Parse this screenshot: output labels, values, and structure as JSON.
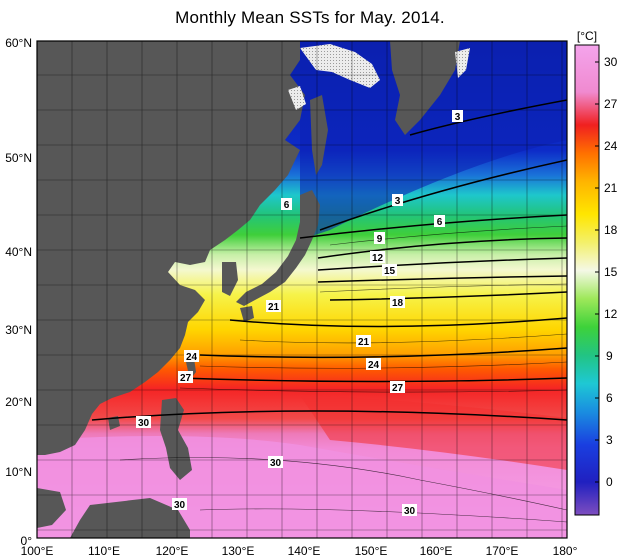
{
  "title": "Monthly Mean SSTs for May. 2014.",
  "units": "[°C]",
  "lon_labels": [
    "100°E",
    "110°E",
    "120°E",
    "130°E",
    "140°E",
    "150°E",
    "160°E",
    "170°E",
    "180°"
  ],
  "lat_labels": [
    "0°",
    "10°N",
    "20°N",
    "30°N",
    "40°N",
    "50°N",
    "60°N"
  ],
  "colorbar": {
    "ticks": [
      "0",
      "3",
      "6",
      "9",
      "12",
      "15",
      "18",
      "21",
      "24",
      "27",
      "30"
    ],
    "stops": [
      "#7e4ec0",
      "#2020c0",
      "#1a74d6",
      "#1ec4d4",
      "#22c483",
      "#3ed23a",
      "#9ee85a",
      "#f4f8e6",
      "#f3f06a",
      "#ffe600",
      "#ffb400",
      "#ff7000",
      "#f02020",
      "#f08ad0",
      "#f4a4ec"
    ]
  },
  "isotherm_labels": [
    "3",
    "3",
    "6",
    "6",
    "9",
    "12",
    "15",
    "18",
    "21",
    "21",
    "24",
    "24",
    "27",
    "27",
    "30",
    "30",
    "30",
    "30"
  ],
  "colors": {
    "land": "#575757",
    "sea_ice": "#e0e0e0",
    "frame": "#000000"
  }
}
